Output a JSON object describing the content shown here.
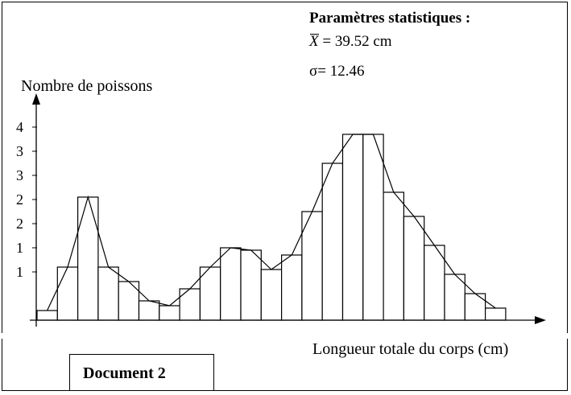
{
  "stats": {
    "title": "Paramètres statistiques :",
    "mean_symbol": "X",
    "mean_text": "= 39.52 cm",
    "sigma_text": "σ= 12.46"
  },
  "document_label": "Document 2",
  "chart_data": {
    "type": "bar",
    "ylabel": "Nombre de poissons",
    "xlabel": "Longueur totale du corps (cm)",
    "y_tick_labels": [
      "1",
      "1",
      "2",
      "2",
      "3",
      "3",
      "4"
    ],
    "y_tick_values": [
      1,
      1.5,
      2,
      2.5,
      3,
      3.5,
      4
    ],
    "ylim": [
      0,
      4.2
    ],
    "bar_count": 23,
    "values": [
      0.2,
      1.1,
      2.55,
      1.1,
      0.8,
      0.4,
      0.3,
      0.65,
      1.1,
      1.5,
      1.45,
      1.05,
      1.35,
      2.25,
      3.25,
      3.85,
      3.85,
      2.65,
      2.15,
      1.55,
      0.95,
      0.55,
      0.25
    ],
    "frequency_polygon": true,
    "legend": "none",
    "grid": false
  },
  "colors": {
    "line": "#000000",
    "bar_fill": "#ffffff",
    "background": "#ffffff"
  }
}
